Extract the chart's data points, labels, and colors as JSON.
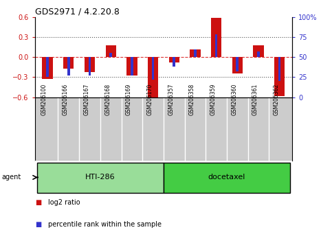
{
  "title": "GDS2971 / 4.2.20.8",
  "samples": [
    "GSM206100",
    "GSM206166",
    "GSM206167",
    "GSM206168",
    "GSM206169",
    "GSM206170",
    "GSM206357",
    "GSM206358",
    "GSM206359",
    "GSM206360",
    "GSM206361",
    "GSM206362"
  ],
  "log2_ratio": [
    -0.325,
    -0.175,
    -0.225,
    0.18,
    -0.275,
    -0.62,
    -0.08,
    0.12,
    0.59,
    -0.24,
    0.18,
    -0.58
  ],
  "percentile": [
    25,
    27,
    27,
    55,
    27,
    22,
    38,
    60,
    78,
    32,
    57,
    20
  ],
  "red_color": "#cc1111",
  "blue_color": "#3333cc",
  "ylim": [
    -0.6,
    0.6
  ],
  "y2lim": [
    0,
    100
  ],
  "yticks": [
    -0.6,
    -0.3,
    0,
    0.3,
    0.6
  ],
  "y2ticks": [
    0,
    25,
    50,
    75,
    100
  ],
  "bar_width": 0.5,
  "blue_bar_width": 0.12,
  "groups": [
    {
      "label": "HTI-286",
      "start": 0,
      "end": 5,
      "color": "#99dd99"
    },
    {
      "label": "docetaxel",
      "start": 6,
      "end": 11,
      "color": "#44cc44"
    }
  ],
  "agent_label": "agent",
  "legend_red": "log2 ratio",
  "legend_blue": "percentile rank within the sample",
  "dotted_color": "#555555",
  "dashed_red_color": "#dd3333",
  "bg_color": "#ffffff",
  "plot_bg": "#ffffff",
  "axis_label_color_left": "#cc1111",
  "axis_label_color_right": "#3333cc",
  "sample_bg": "#cccccc"
}
